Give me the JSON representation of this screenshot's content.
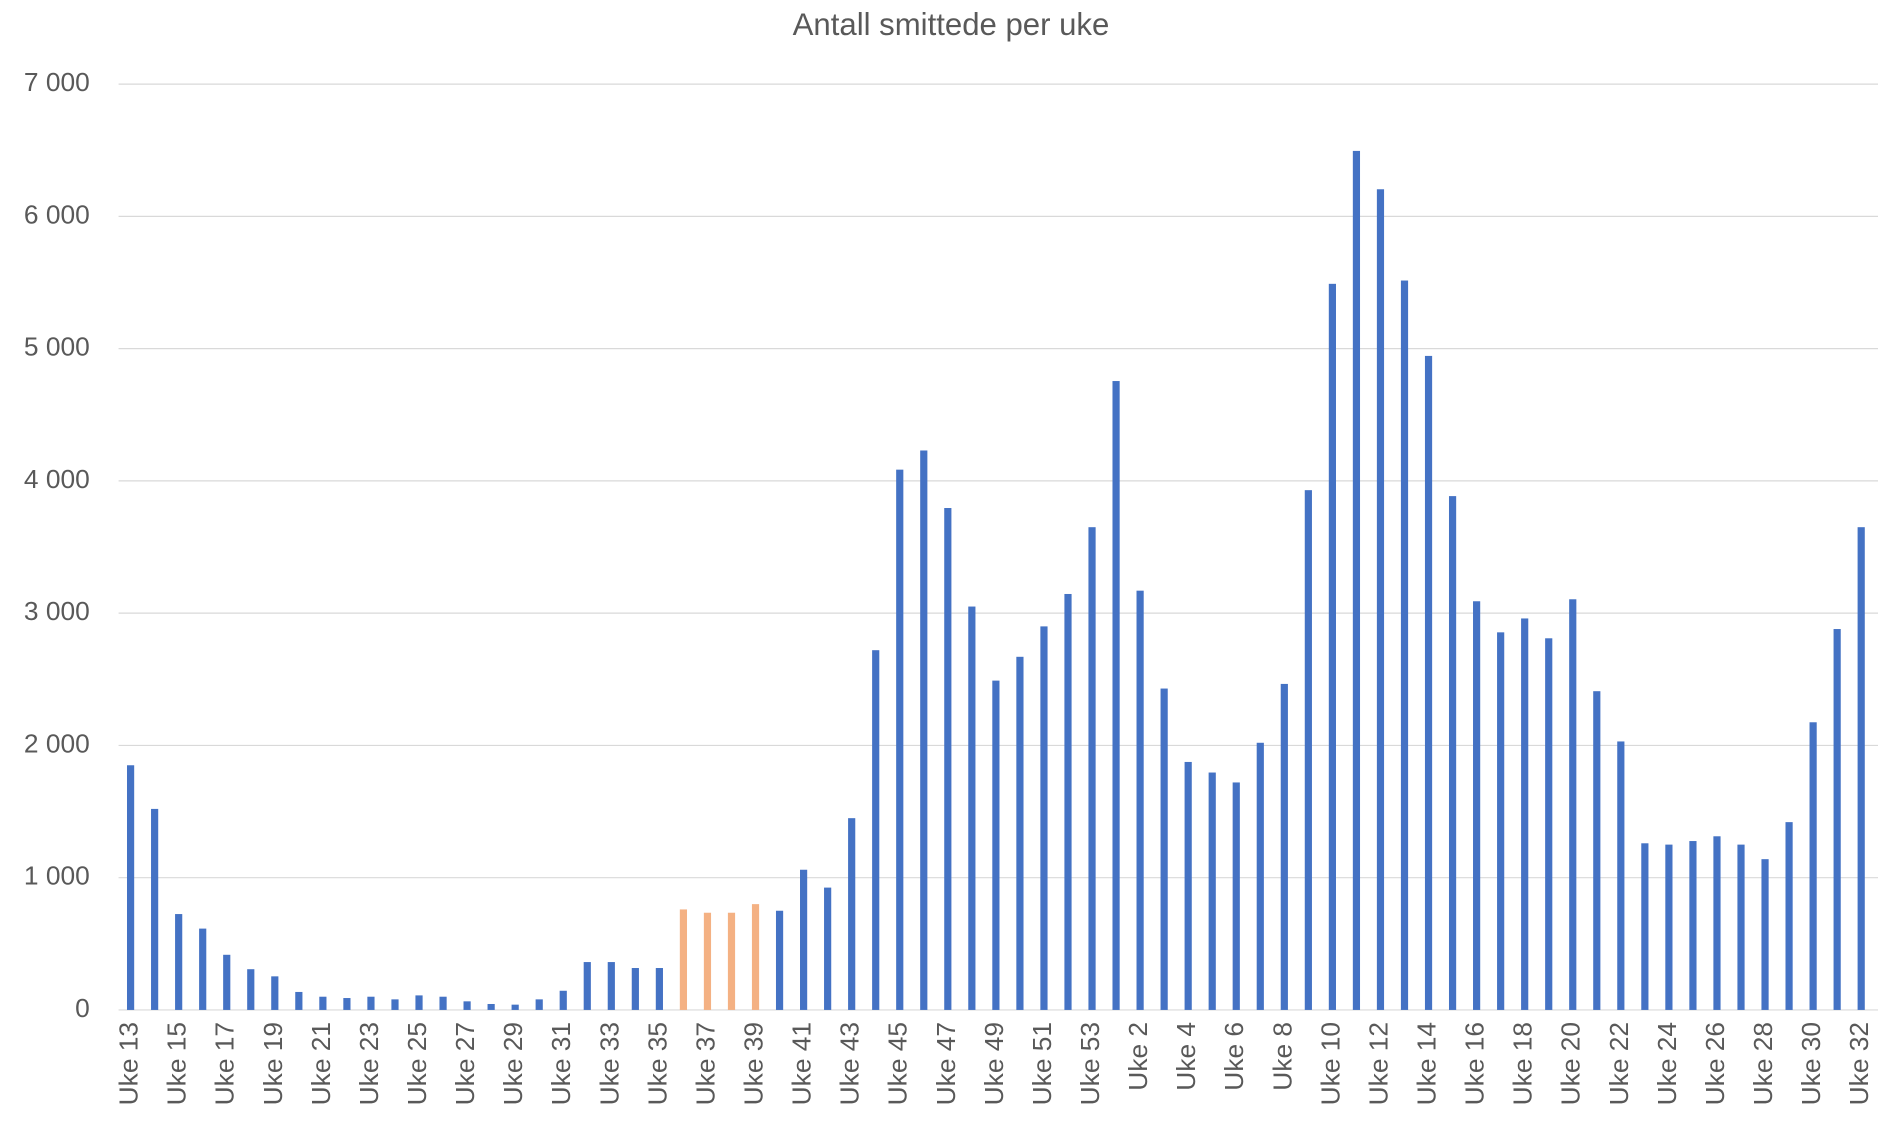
{
  "chart_data": {
    "type": "bar",
    "title": "Antall smittede per uke",
    "categories": [
      "Uke 13",
      null,
      "Uke 15",
      null,
      "Uke 17",
      null,
      "Uke 19",
      null,
      "Uke 21",
      null,
      "Uke 23",
      null,
      "Uke 25",
      null,
      "Uke 27",
      null,
      "Uke 29",
      null,
      "Uke 31",
      null,
      "Uke 33",
      null,
      "Uke 35",
      null,
      "Uke 37",
      null,
      "Uke 39",
      null,
      "Uke 41",
      null,
      "Uke 43",
      null,
      "Uke 45",
      null,
      "Uke 47",
      null,
      "Uke 49",
      null,
      "Uke 51",
      null,
      "Uke 53",
      null,
      "Uke 2",
      null,
      "Uke 4",
      null,
      "Uke 6",
      null,
      "Uke 8",
      null,
      "Uke 10",
      null,
      "Uke 12",
      null,
      "Uke 14",
      null,
      "Uke 16",
      null,
      "Uke 18",
      null,
      "Uke 20",
      null,
      "Uke 22",
      null,
      "Uke 24",
      null,
      "Uke 26",
      null,
      "Uke 28",
      null,
      "Uke 30",
      null,
      "Uke 32"
    ],
    "values": [
      1850,
      1520,
      725,
      615,
      417,
      308,
      254,
      136,
      100,
      90,
      100,
      80,
      110,
      100,
      65,
      45,
      40,
      80,
      145,
      362,
      362,
      317,
      317,
      760,
      735,
      735,
      800,
      750,
      1060,
      925,
      1450,
      2720,
      4085,
      4230,
      3795,
      3050,
      2490,
      2670,
      2900,
      3145,
      3650,
      4755,
      3170,
      2430,
      1875,
      1795,
      1720,
      2020,
      2465,
      3930,
      5490,
      6495,
      6205,
      5515,
      4945,
      3885,
      3090,
      2855,
      2960,
      2810,
      3105,
      2410,
      2030,
      1260,
      1250,
      1277,
      1313,
      1250,
      1140,
      1420,
      2175,
      2880,
      3650
    ],
    "colors": [
      "#4472c4",
      "#4472c4",
      "#4472c4",
      "#4472c4",
      "#4472c4",
      "#4472c4",
      "#4472c4",
      "#4472c4",
      "#4472c4",
      "#4472c4",
      "#4472c4",
      "#4472c4",
      "#4472c4",
      "#4472c4",
      "#4472c4",
      "#4472c4",
      "#4472c4",
      "#4472c4",
      "#4472c4",
      "#4472c4",
      "#4472c4",
      "#4472c4",
      "#4472c4",
      "#f4b183",
      "#f4b183",
      "#f4b183",
      "#f4b183",
      "#4472c4",
      "#4472c4",
      "#4472c4",
      "#4472c4",
      "#4472c4",
      "#4472c4",
      "#4472c4",
      "#4472c4",
      "#4472c4",
      "#4472c4",
      "#4472c4",
      "#4472c4",
      "#4472c4",
      "#4472c4",
      "#4472c4",
      "#4472c4",
      "#4472c4",
      "#4472c4",
      "#4472c4",
      "#4472c4",
      "#4472c4",
      "#4472c4",
      "#4472c4",
      "#4472c4",
      "#4472c4",
      "#4472c4",
      "#4472c4",
      "#4472c4",
      "#4472c4",
      "#4472c4",
      "#4472c4",
      "#4472c4",
      "#4472c4",
      "#4472c4",
      "#4472c4",
      "#4472c4",
      "#4472c4",
      "#4472c4",
      "#4472c4",
      "#4472c4",
      "#4472c4",
      "#4472c4",
      "#4472c4",
      "#4472c4",
      "#4472c4",
      "#4472c4"
    ],
    "ylim": [
      0,
      7000
    ],
    "yticks": [
      0,
      {
        "value": 1000,
        "label": "1 000"
      },
      {
        "value": 2000,
        "label": "2 000"
      },
      {
        "value": 3000,
        "label": "3 000"
      },
      {
        "value": 4000,
        "label": "4 000"
      },
      {
        "value": 5000,
        "label": "5 000"
      },
      {
        "value": 6000,
        "label": "6 000"
      },
      {
        "value": 7000,
        "label": "7 000"
      }
    ],
    "grid": true
  }
}
